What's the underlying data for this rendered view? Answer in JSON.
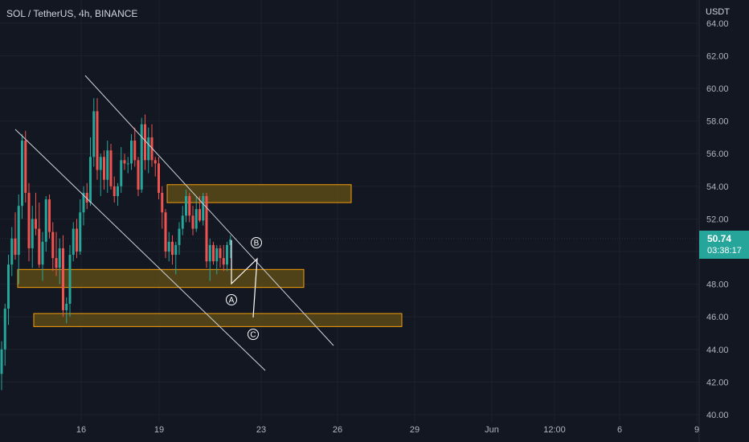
{
  "header": {
    "symbol": "SOL / TetherUS, 4h, BINANCE",
    "currency": "USDT"
  },
  "last_price": {
    "value": "50.74",
    "countdown": "03:38:17"
  },
  "colors": {
    "background": "#131722",
    "up": "#26a69a",
    "down": "#ef5350",
    "zone_fill": "#5c4a16",
    "zone_border": "#f59e0b",
    "trendline": "#d1d4dc",
    "wave_line": "#ffffff"
  },
  "chart_data": {
    "type": "candlestick",
    "y_axis": {
      "range": [
        40,
        64
      ],
      "ticks": [
        "40.00",
        "42.00",
        "44.00",
        "46.00",
        "48.00",
        "50.00",
        "52.00",
        "54.00",
        "56.00",
        "58.00",
        "60.00",
        "62.00",
        "64.00"
      ]
    },
    "x_axis": {
      "ticks": [
        "16",
        "19",
        "23",
        "26",
        "29",
        "Jun",
        "12:00",
        "6",
        "9"
      ]
    },
    "candles": [
      [
        42.5,
        44.5,
        41.5,
        44.0
      ],
      [
        44.0,
        46.8,
        43.0,
        46.5
      ],
      [
        46.5,
        49.8,
        45.5,
        49.2
      ],
      [
        49.2,
        51.5,
        48.5,
        50.8
      ],
      [
        50.8,
        52.4,
        49.5,
        49.8
      ],
      [
        49.8,
        53.5,
        48.0,
        52.8
      ],
      [
        52.8,
        57.2,
        52.0,
        56.8
      ],
      [
        56.8,
        57.4,
        53.0,
        53.6
      ],
      [
        53.6,
        54.2,
        49.4,
        50.2
      ],
      [
        50.2,
        52.8,
        49.0,
        52.0
      ],
      [
        52.0,
        53.6,
        51.0,
        51.4
      ],
      [
        51.4,
        53.0,
        49.0,
        49.2
      ],
      [
        49.2,
        51.2,
        48.2,
        50.6
      ],
      [
        50.6,
        53.4,
        50.0,
        53.2
      ],
      [
        53.2,
        53.5,
        50.8,
        51.2
      ],
      [
        51.2,
        51.8,
        48.8,
        49.6
      ],
      [
        49.6,
        51.2,
        48.5,
        49.0
      ],
      [
        49.0,
        50.8,
        48.0,
        50.2
      ],
      [
        50.2,
        51.0,
        46.0,
        46.4
      ],
      [
        46.4,
        47.2,
        45.6,
        46.8
      ],
      [
        46.8,
        50.4,
        46.0,
        49.8
      ],
      [
        49.8,
        51.8,
        49.4,
        51.4
      ],
      [
        51.4,
        52.0,
        49.6,
        50.0
      ],
      [
        50.0,
        53.2,
        49.8,
        52.4
      ],
      [
        52.4,
        54.0,
        51.6,
        53.6
      ],
      [
        53.6,
        54.2,
        52.6,
        53.0
      ],
      [
        53.0,
        57.0,
        52.8,
        55.8
      ],
      [
        55.8,
        59.4,
        55.2,
        58.6
      ],
      [
        58.6,
        59.4,
        54.4,
        55.0
      ],
      [
        55.0,
        56.0,
        53.4,
        55.8
      ],
      [
        55.8,
        56.2,
        53.8,
        54.4
      ],
      [
        54.4,
        56.8,
        53.6,
        56.2
      ],
      [
        56.2,
        56.6,
        53.8,
        54.0
      ],
      [
        54.0,
        54.6,
        53.0,
        53.4
      ],
      [
        53.4,
        54.2,
        52.8,
        54.0
      ],
      [
        54.0,
        56.4,
        53.6,
        55.6
      ],
      [
        55.6,
        56.0,
        55.0,
        55.4
      ],
      [
        55.4,
        55.8,
        54.8,
        55.4
      ],
      [
        55.4,
        57.2,
        55.0,
        56.8
      ],
      [
        56.8,
        57.6,
        55.2,
        55.6
      ],
      [
        55.6,
        55.8,
        53.4,
        53.8
      ],
      [
        53.8,
        58.2,
        53.6,
        57.8
      ],
      [
        57.8,
        58.4,
        55.0,
        55.6
      ],
      [
        55.6,
        57.6,
        54.8,
        57.0
      ],
      [
        57.0,
        57.8,
        55.2,
        55.6
      ],
      [
        55.6,
        55.8,
        54.6,
        55.4
      ],
      [
        55.4,
        55.8,
        53.2,
        53.6
      ],
      [
        53.6,
        54.0,
        51.4,
        52.4
      ],
      [
        52.4,
        52.6,
        49.6,
        50.0
      ],
      [
        50.0,
        51.2,
        49.4,
        50.6
      ],
      [
        50.6,
        51.0,
        49.2,
        49.8
      ],
      [
        49.8,
        50.6,
        48.6,
        50.4
      ],
      [
        50.4,
        51.8,
        49.8,
        51.4
      ],
      [
        51.4,
        52.8,
        51.0,
        52.2
      ],
      [
        52.2,
        53.8,
        51.8,
        53.4
      ],
      [
        53.4,
        53.6,
        51.8,
        52.2
      ],
      [
        52.2,
        52.8,
        51.0,
        51.4
      ],
      [
        51.4,
        53.4,
        51.2,
        52.6
      ],
      [
        52.6,
        53.4,
        51.8,
        51.9
      ],
      [
        51.9,
        53.6,
        51.6,
        53.4
      ],
      [
        53.4,
        53.6,
        49.0,
        49.4
      ],
      [
        49.4,
        50.8,
        48.2,
        50.4
      ],
      [
        50.4,
        50.6,
        49.2,
        49.4
      ],
      [
        49.4,
        50.4,
        48.6,
        50.2
      ],
      [
        50.2,
        50.4,
        49.0,
        49.6
      ],
      [
        49.6,
        50.4,
        48.8,
        49.2
      ],
      [
        49.2,
        50.6,
        48.8,
        50.4
      ],
      [
        50.4,
        51.0,
        49.6,
        50.74
      ]
    ],
    "zones": [
      {
        "low": 53.0,
        "high": 54.1
      },
      {
        "low": 47.8,
        "high": 48.9
      },
      {
        "low": 45.4,
        "high": 46.2
      }
    ],
    "wave_labels": [
      "A",
      "B",
      "C"
    ]
  }
}
